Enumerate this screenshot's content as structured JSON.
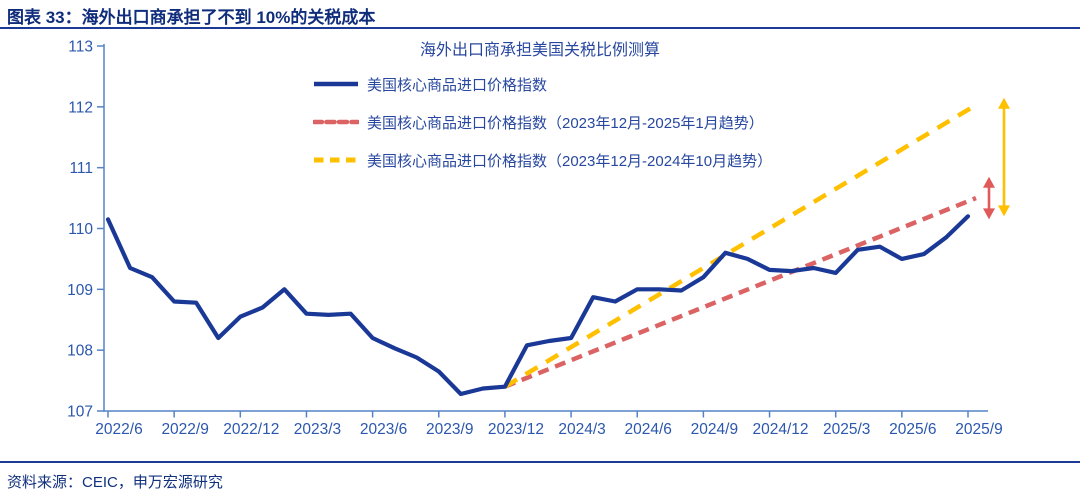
{
  "header": {
    "title": "图表 33：海外出口商承担了不到 10%的关税成本"
  },
  "footer": {
    "source": "资料来源：CEIC，申万宏源研究"
  },
  "colors": {
    "header_navy": "#102d7c",
    "rule_blue": "#1c3a94",
    "axis_blue": "#5583c6",
    "tick_label_blue": "#2b57ae",
    "text_blue": "#28489f",
    "series_blue": "#1a3896",
    "trend_red": "#dc6363",
    "trend_yellow": "#ffc000",
    "arrow_red": "#e05a5a",
    "arrow_yellow": "#ffc000"
  },
  "chart_data": {
    "type": "line",
    "title": "海外出口商承担美国关税比例测算",
    "xlabel": "",
    "ylabel": "",
    "ylim": [
      107,
      113
    ],
    "y_ticks": [
      107,
      108,
      109,
      110,
      111,
      112,
      113
    ],
    "grid": false,
    "legend_position": "top-inside",
    "categories": [
      "2022/6",
      "2022/7",
      "2022/8",
      "2022/9",
      "2022/10",
      "2022/11",
      "2022/12",
      "2023/1",
      "2023/2",
      "2023/3",
      "2023/4",
      "2023/5",
      "2023/6",
      "2023/7",
      "2023/8",
      "2023/9",
      "2023/10",
      "2023/11",
      "2023/12",
      "2024/1",
      "2024/2",
      "2024/3",
      "2024/4",
      "2024/5",
      "2024/6",
      "2024/7",
      "2024/8",
      "2024/9",
      "2024/10",
      "2024/11",
      "2024/12",
      "2025/1",
      "2025/2",
      "2025/3",
      "2025/4",
      "2025/5",
      "2025/6",
      "2025/7",
      "2025/8",
      "2025/9"
    ],
    "x_tick_labels": [
      "2022/6",
      "2022/9",
      "2022/12",
      "2023/3",
      "2023/6",
      "2023/9",
      "2023/12",
      "2024/3",
      "2024/6",
      "2024/9",
      "2024/12",
      "2025/3",
      "2025/6",
      "2025/9"
    ],
    "series": [
      {
        "name": "美国核心商品进口价格指数",
        "style": "solid",
        "color": "#1a3896",
        "values": [
          110.15,
          109.35,
          109.2,
          108.8,
          108.78,
          108.2,
          108.55,
          108.7,
          109.0,
          108.6,
          108.58,
          108.6,
          108.2,
          108.03,
          107.88,
          107.65,
          107.28,
          107.37,
          107.4,
          108.08,
          108.15,
          108.2,
          108.87,
          108.8,
          109.0,
          109.0,
          108.98,
          109.2,
          109.6,
          109.5,
          109.32,
          109.3,
          109.35,
          109.27,
          109.65,
          109.7,
          109.5,
          109.58,
          109.85,
          110.2
        ]
      },
      {
        "name": "美国核心商品进口价格指数（2023年12月-2025年1月趋势）",
        "style": "dashed",
        "color": "#dc6363",
        "trend": {
          "start_category": "2023/12",
          "end_category": "2025/9",
          "start_value": 107.4,
          "end_value": 110.5
        }
      },
      {
        "name": "美国核心商品进口价格指数（2023年12月-2024年10月趋势）",
        "style": "dashed",
        "color": "#ffc000",
        "trend": {
          "start_category": "2023/12",
          "end_category": "2025/9",
          "start_value": 107.4,
          "end_value": 112.05
        }
      }
    ],
    "annotations": [
      {
        "id": "yellow-gap-arrow",
        "color": "#ffc000",
        "top_value": 112.15,
        "bottom_value": 110.2
      },
      {
        "id": "red-gap-arrow",
        "color": "#e05a5a",
        "top_value": 110.85,
        "bottom_value": 110.15
      }
    ]
  }
}
